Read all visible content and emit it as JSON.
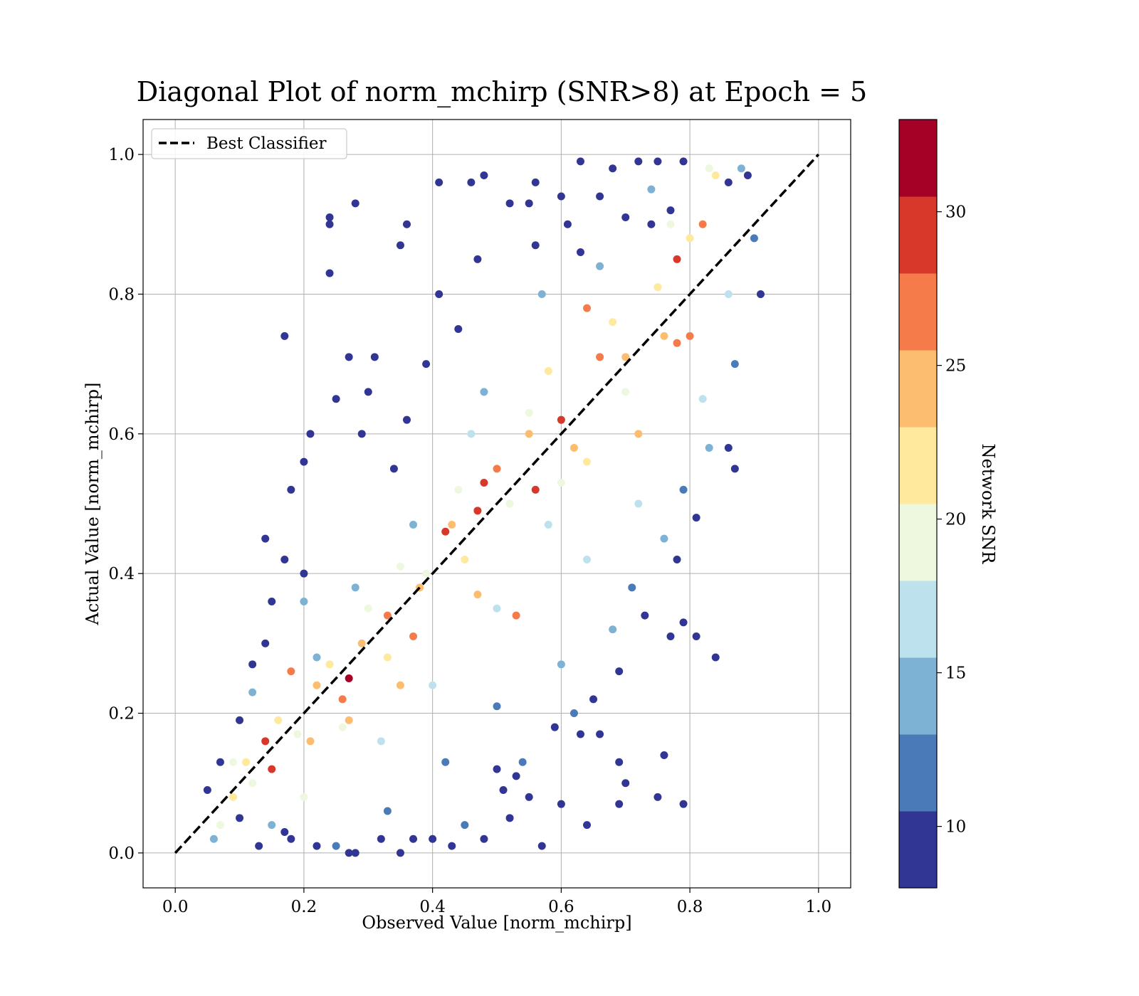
{
  "chart_data": {
    "type": "scatter",
    "title": "Diagonal Plot of norm_mchirp (SNR>8) at Epoch = 5",
    "xlabel": "Observed Value [norm_mchirp]",
    "ylabel": "Actual Value [norm_mchirp]",
    "xlim": [
      -0.05,
      1.05
    ],
    "ylim": [
      -0.05,
      1.05
    ],
    "xticks": [
      0.0,
      0.2,
      0.4,
      0.6,
      0.8,
      1.0
    ],
    "yticks": [
      0.0,
      0.2,
      0.4,
      0.6,
      0.8,
      1.0
    ],
    "xtick_labels": [
      "0.0",
      "0.2",
      "0.4",
      "0.6",
      "0.8",
      "1.0"
    ],
    "ytick_labels": [
      "0.0",
      "0.2",
      "0.4",
      "0.6",
      "0.8",
      "1.0"
    ],
    "grid": true,
    "legend": {
      "placement": "upper-left",
      "entries": [
        {
          "label": "Best Classifier",
          "style": "dashed",
          "color": "#000000"
        }
      ]
    },
    "reference_line": {
      "name": "Best Classifier",
      "x": [
        0.0,
        1.0
      ],
      "y": [
        0.0,
        1.0
      ]
    },
    "colorbar": {
      "label": "Network SNR",
      "range": [
        8,
        33
      ],
      "ticks": [
        10,
        15,
        20,
        25,
        30
      ],
      "tick_labels": [
        "10",
        "15",
        "20",
        "25",
        "30"
      ],
      "bin_edges": [
        8,
        10.5,
        13,
        15.5,
        18,
        20.5,
        23,
        25.5,
        28,
        30.5,
        33
      ],
      "colors": [
        "#313695",
        "#4a7ab7",
        "#7eb2d4",
        "#bde2ee",
        "#eef8df",
        "#fee99d",
        "#fdbd6f",
        "#f57b4a",
        "#d8382a",
        "#a50026"
      ]
    },
    "series": [
      {
        "color_by": "Network SNR",
        "points": [
          [
            0.27,
            0.25,
            33
          ],
          [
            0.42,
            0.46,
            30
          ],
          [
            0.47,
            0.49,
            29
          ],
          [
            0.14,
            0.16,
            28
          ],
          [
            0.15,
            0.12,
            28
          ],
          [
            0.48,
            0.53,
            28
          ],
          [
            0.78,
            0.85,
            28
          ],
          [
            0.56,
            0.52,
            28
          ],
          [
            0.82,
            0.9,
            27
          ],
          [
            0.6,
            0.62,
            28
          ],
          [
            0.66,
            0.71,
            27
          ],
          [
            0.18,
            0.26,
            26
          ],
          [
            0.78,
            0.73,
            26
          ],
          [
            0.53,
            0.34,
            26
          ],
          [
            0.47,
            0.37,
            25
          ],
          [
            0.64,
            0.78,
            26
          ],
          [
            0.8,
            0.74,
            26
          ],
          [
            0.37,
            0.31,
            26
          ],
          [
            0.26,
            0.22,
            26
          ],
          [
            0.21,
            0.16,
            25
          ],
          [
            0.5,
            0.55,
            26
          ],
          [
            0.33,
            0.34,
            26
          ],
          [
            0.27,
            0.19,
            24
          ],
          [
            0.35,
            0.24,
            25
          ],
          [
            0.55,
            0.6,
            25
          ],
          [
            0.7,
            0.71,
            25
          ],
          [
            0.76,
            0.74,
            24
          ],
          [
            0.62,
            0.58,
            24
          ],
          [
            0.43,
            0.47,
            24
          ],
          [
            0.38,
            0.38,
            23
          ],
          [
            0.29,
            0.3,
            23
          ],
          [
            0.22,
            0.24,
            23
          ],
          [
            0.11,
            0.13,
            22
          ],
          [
            0.09,
            0.08,
            22
          ],
          [
            0.72,
            0.6,
            23
          ],
          [
            0.8,
            0.88,
            22
          ],
          [
            0.68,
            0.76,
            22
          ],
          [
            0.58,
            0.69,
            21
          ],
          [
            0.45,
            0.42,
            22
          ],
          [
            0.33,
            0.28,
            22
          ],
          [
            0.84,
            0.97,
            21
          ],
          [
            0.24,
            0.27,
            21
          ],
          [
            0.16,
            0.19,
            21
          ],
          [
            0.75,
            0.81,
            21
          ],
          [
            0.64,
            0.56,
            21
          ],
          [
            0.52,
            0.5,
            20
          ],
          [
            0.39,
            0.4,
            20
          ],
          [
            0.3,
            0.35,
            20
          ],
          [
            0.19,
            0.17,
            20
          ],
          [
            0.12,
            0.1,
            20
          ],
          [
            0.07,
            0.04,
            19
          ],
          [
            0.83,
            0.98,
            19
          ],
          [
            0.77,
            0.9,
            19
          ],
          [
            0.7,
            0.66,
            19
          ],
          [
            0.6,
            0.53,
            19
          ],
          [
            0.55,
            0.63,
            18
          ],
          [
            0.44,
            0.52,
            18
          ],
          [
            0.35,
            0.41,
            18
          ],
          [
            0.26,
            0.18,
            18
          ],
          [
            0.2,
            0.08,
            18
          ],
          [
            0.09,
            0.13,
            18
          ],
          [
            0.86,
            0.8,
            17
          ],
          [
            0.82,
            0.65,
            17
          ],
          [
            0.72,
            0.5,
            17
          ],
          [
            0.64,
            0.42,
            16
          ],
          [
            0.58,
            0.47,
            16
          ],
          [
            0.5,
            0.35,
            16
          ],
          [
            0.46,
            0.6,
            16
          ],
          [
            0.4,
            0.24,
            16
          ],
          [
            0.32,
            0.16,
            16
          ],
          [
            0.22,
            0.28,
            15
          ],
          [
            0.15,
            0.04,
            15
          ],
          [
            0.06,
            0.02,
            15
          ],
          [
            0.88,
            0.98,
            15
          ],
          [
            0.74,
            0.95,
            15
          ],
          [
            0.66,
            0.84,
            14
          ],
          [
            0.57,
            0.8,
            14
          ],
          [
            0.48,
            0.66,
            14
          ],
          [
            0.37,
            0.47,
            14
          ],
          [
            0.28,
            0.38,
            14
          ],
          [
            0.2,
            0.36,
            13
          ],
          [
            0.12,
            0.23,
            13
          ],
          [
            0.83,
            0.58,
            13
          ],
          [
            0.76,
            0.45,
            13
          ],
          [
            0.68,
            0.32,
            13
          ],
          [
            0.6,
            0.27,
            13
          ],
          [
            0.5,
            0.21,
            12
          ],
          [
            0.42,
            0.13,
            12
          ],
          [
            0.33,
            0.06,
            12
          ],
          [
            0.25,
            0.01,
            12
          ],
          [
            0.9,
            0.88,
            12
          ],
          [
            0.87,
            0.7,
            12
          ],
          [
            0.79,
            0.52,
            11
          ],
          [
            0.71,
            0.38,
            11
          ],
          [
            0.62,
            0.2,
            11
          ],
          [
            0.54,
            0.13,
            11
          ],
          [
            0.45,
            0.04,
            11
          ],
          [
            0.37,
            0.02,
            10
          ],
          [
            0.28,
            0.0,
            10
          ],
          [
            0.18,
            0.02,
            10
          ],
          [
            0.28,
            0.93,
            9
          ],
          [
            0.24,
            0.91,
            9
          ],
          [
            0.24,
            0.9,
            9
          ],
          [
            0.24,
            0.83,
            9
          ],
          [
            0.17,
            0.74,
            9
          ],
          [
            0.18,
            0.52,
            9
          ],
          [
            0.14,
            0.45,
            9
          ],
          [
            0.35,
            0.87,
            9
          ],
          [
            0.36,
            0.9,
            9
          ],
          [
            0.41,
            0.96,
            9
          ],
          [
            0.46,
            0.96,
            9
          ],
          [
            0.48,
            0.97,
            9
          ],
          [
            0.56,
            0.96,
            9
          ],
          [
            0.63,
            0.99,
            9
          ],
          [
            0.84,
            0.28,
            9
          ],
          [
            0.79,
            0.33,
            9
          ],
          [
            0.81,
            0.31,
            9
          ],
          [
            0.77,
            0.31,
            9
          ],
          [
            0.76,
            0.14,
            9
          ],
          [
            0.75,
            0.08,
            9
          ],
          [
            0.79,
            0.07,
            9
          ],
          [
            0.69,
            0.13,
            9
          ],
          [
            0.7,
            0.1,
            9
          ],
          [
            0.69,
            0.07,
            9
          ],
          [
            0.64,
            0.04,
            9
          ],
          [
            0.6,
            0.07,
            9
          ],
          [
            0.57,
            0.01,
            9
          ],
          [
            0.43,
            0.01,
            9
          ],
          [
            0.48,
            0.02,
            9
          ],
          [
            0.27,
            0.0,
            9
          ],
          [
            0.32,
            0.02,
            9
          ],
          [
            0.66,
            0.17,
            9
          ],
          [
            0.63,
            0.17,
            9
          ],
          [
            0.53,
            0.11,
            9
          ],
          [
            0.51,
            0.09,
            9
          ],
          [
            0.5,
            0.12,
            9
          ],
          [
            0.91,
            0.8,
            9
          ],
          [
            0.89,
            0.97,
            9
          ],
          [
            0.86,
            0.96,
            9
          ],
          [
            0.27,
            0.71,
            9
          ],
          [
            0.31,
            0.71,
            9
          ],
          [
            0.3,
            0.66,
            9
          ],
          [
            0.2,
            0.56,
            9
          ],
          [
            0.21,
            0.6,
            9
          ],
          [
            0.29,
            0.6,
            9
          ],
          [
            0.25,
            0.65,
            9
          ],
          [
            0.17,
            0.42,
            9
          ],
          [
            0.2,
            0.4,
            9
          ],
          [
            0.15,
            0.36,
            9
          ],
          [
            0.14,
            0.3,
            9
          ],
          [
            0.12,
            0.27,
            9
          ],
          [
            0.1,
            0.19,
            9
          ],
          [
            0.07,
            0.13,
            9
          ],
          [
            0.05,
            0.09,
            9
          ],
          [
            0.41,
            0.8,
            9
          ],
          [
            0.47,
            0.85,
            9
          ],
          [
            0.52,
            0.93,
            9
          ],
          [
            0.55,
            0.93,
            9
          ],
          [
            0.6,
            0.94,
            9
          ],
          [
            0.68,
            0.98,
            9
          ],
          [
            0.72,
            0.99,
            9
          ],
          [
            0.75,
            0.99,
            9
          ],
          [
            0.79,
            0.99,
            9
          ],
          [
            0.86,
            0.58,
            9
          ],
          [
            0.87,
            0.55,
            9
          ],
          [
            0.81,
            0.48,
            9
          ],
          [
            0.78,
            0.42,
            9
          ],
          [
            0.73,
            0.34,
            9
          ],
          [
            0.69,
            0.26,
            9
          ],
          [
            0.65,
            0.22,
            9
          ],
          [
            0.59,
            0.18,
            9
          ],
          [
            0.55,
            0.08,
            9
          ],
          [
            0.52,
            0.05,
            9
          ],
          [
            0.4,
            0.02,
            9
          ],
          [
            0.35,
            0.0,
            9
          ],
          [
            0.22,
            0.01,
            9
          ],
          [
            0.17,
            0.03,
            9
          ],
          [
            0.13,
            0.01,
            9
          ],
          [
            0.1,
            0.05,
            9
          ],
          [
            0.34,
            0.55,
            9
          ],
          [
            0.39,
            0.7,
            9
          ],
          [
            0.44,
            0.75,
            9
          ],
          [
            0.36,
            0.62,
            9
          ],
          [
            0.56,
            0.87,
            9
          ],
          [
            0.61,
            0.9,
            9
          ],
          [
            0.63,
            0.86,
            9
          ],
          [
            0.66,
            0.94,
            9
          ],
          [
            0.7,
            0.91,
            9
          ],
          [
            0.74,
            0.9,
            9
          ],
          [
            0.77,
            0.92,
            9
          ]
        ]
      }
    ]
  }
}
